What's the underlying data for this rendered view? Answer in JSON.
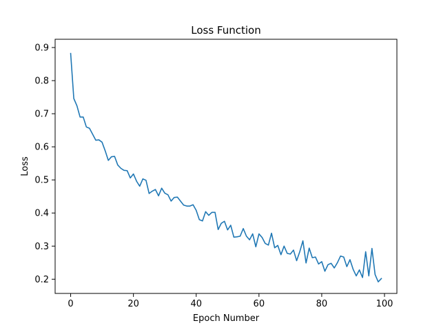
{
  "chart_data": {
    "type": "line",
    "title": "Loss Function",
    "xlabel": "Epoch Number",
    "ylabel": "Loss",
    "xlim": [
      -4.95,
      103.95
    ],
    "ylim": [
      0.157,
      0.925
    ],
    "xticks": [
      0,
      20,
      40,
      60,
      80,
      100
    ],
    "xtick_labels": [
      "0",
      "20",
      "40",
      "60",
      "80",
      "100"
    ],
    "yticks": [
      0.2,
      0.3,
      0.4,
      0.5,
      0.6,
      0.7,
      0.8,
      0.9
    ],
    "ytick_labels": [
      "0.2",
      "0.3",
      "0.4",
      "0.5",
      "0.6",
      "0.7",
      "0.8",
      "0.9"
    ],
    "grid": false,
    "series": [
      {
        "color": "#1f77b4",
        "x": [
          0,
          1,
          2,
          3,
          4,
          5,
          6,
          7,
          8,
          9,
          10,
          11,
          12,
          13,
          14,
          15,
          16,
          17,
          18,
          19,
          20,
          21,
          22,
          23,
          24,
          25,
          26,
          27,
          28,
          29,
          30,
          31,
          32,
          33,
          34,
          35,
          36,
          37,
          38,
          39,
          40,
          41,
          42,
          43,
          44,
          45,
          46,
          47,
          48,
          49,
          50,
          51,
          52,
          53,
          54,
          55,
          56,
          57,
          58,
          59,
          60,
          61,
          62,
          63,
          64,
          65,
          66,
          67,
          68,
          69,
          70,
          71,
          72,
          73,
          74,
          75,
          76,
          77,
          78,
          79,
          80,
          81,
          82,
          83,
          84,
          85,
          86,
          87,
          88,
          89,
          90,
          91,
          92,
          93,
          94,
          95,
          96,
          97,
          98,
          99
        ],
        "y": [
          0.882,
          0.746,
          0.724,
          0.69,
          0.69,
          0.66,
          0.656,
          0.638,
          0.62,
          0.621,
          0.614,
          0.588,
          0.559,
          0.57,
          0.571,
          0.545,
          0.535,
          0.529,
          0.528,
          0.506,
          0.518,
          0.496,
          0.481,
          0.503,
          0.499,
          0.459,
          0.466,
          0.471,
          0.452,
          0.475,
          0.46,
          0.455,
          0.436,
          0.447,
          0.448,
          0.436,
          0.424,
          0.421,
          0.421,
          0.425,
          0.408,
          0.38,
          0.376,
          0.404,
          0.393,
          0.402,
          0.402,
          0.35,
          0.369,
          0.375,
          0.349,
          0.363,
          0.327,
          0.328,
          0.33,
          0.353,
          0.33,
          0.319,
          0.337,
          0.298,
          0.337,
          0.326,
          0.308,
          0.303,
          0.339,
          0.295,
          0.302,
          0.274,
          0.3,
          0.278,
          0.276,
          0.288,
          0.256,
          0.283,
          0.316,
          0.249,
          0.294,
          0.265,
          0.267,
          0.246,
          0.253,
          0.224,
          0.244,
          0.248,
          0.234,
          0.25,
          0.27,
          0.267,
          0.238,
          0.259,
          0.23,
          0.21,
          0.228,
          0.205,
          0.283,
          0.21,
          0.293,
          0.214,
          0.192,
          0.202
        ]
      }
    ]
  }
}
